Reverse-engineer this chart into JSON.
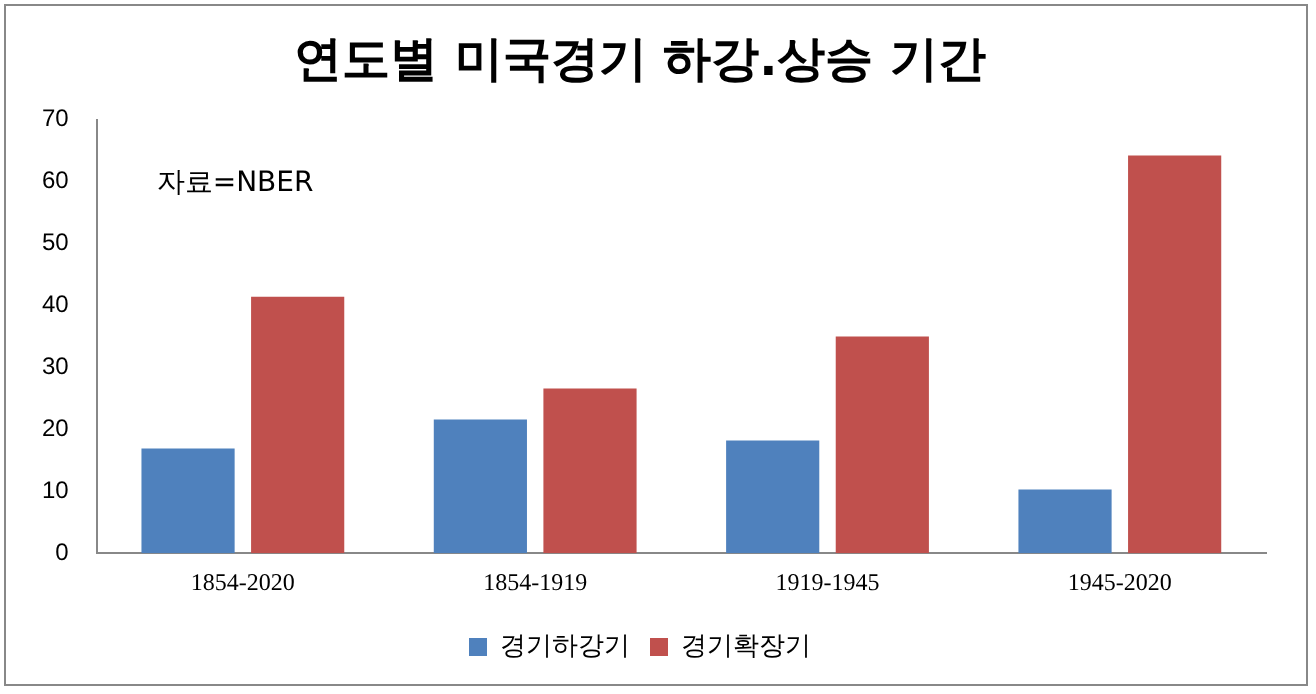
{
  "chart_data": {
    "type": "bar",
    "title": "연도별 미국경기 하강.상승 기간",
    "categories": [
      "1854-2020",
      "1854-1919",
      "1919-1945",
      "1945-2020"
    ],
    "series": [
      {
        "name": "경기하강기",
        "color": "#4f81bd",
        "values": [
          16.9,
          21.6,
          18.2,
          10.3
        ]
      },
      {
        "name": "경기확장기",
        "color": "#c0504d",
        "values": [
          41.4,
          26.6,
          35,
          64.2
        ]
      }
    ],
    "ylim": [
      0,
      70
    ],
    "yticks": [
      0,
      10,
      20,
      30,
      40,
      50,
      60,
      70
    ],
    "grid": false,
    "legend": "bottom",
    "annotations": [
      "자료=NBER"
    ]
  }
}
